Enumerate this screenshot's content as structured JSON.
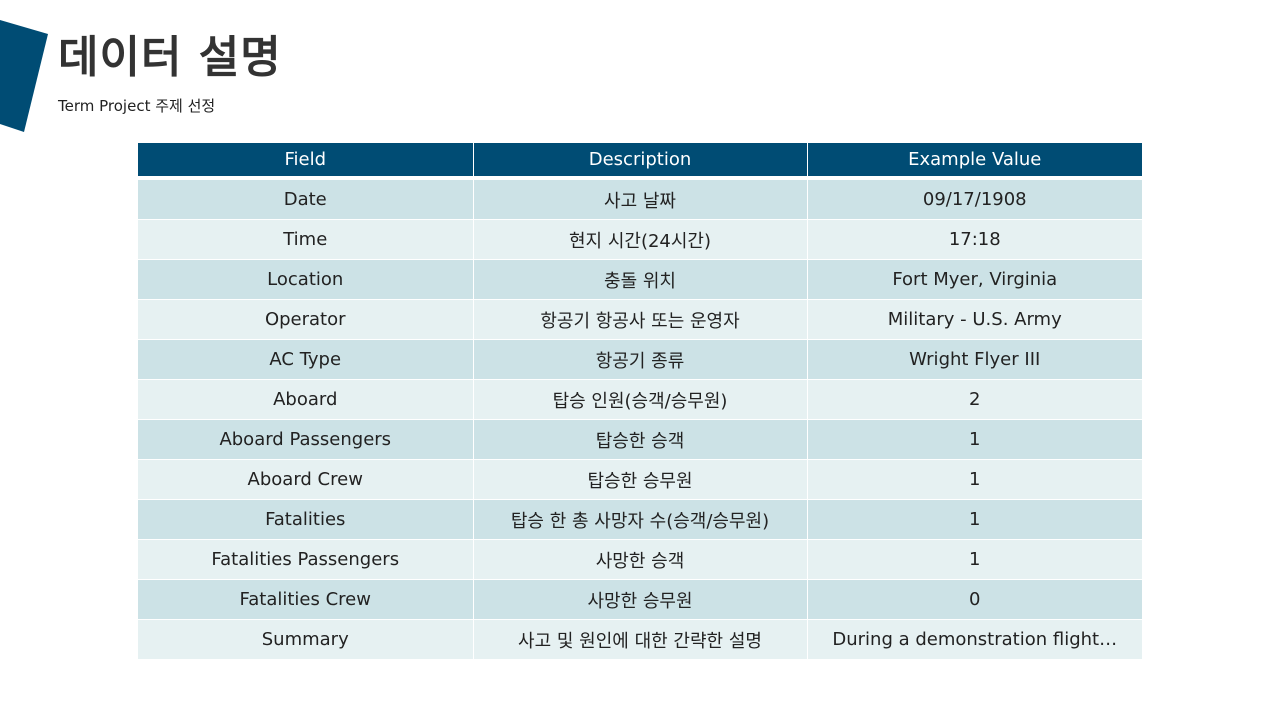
{
  "slide": {
    "title": "데이터 설명",
    "subtitle": "Term Project 주제 선정",
    "accent_color": "#004c74",
    "row_color_odd": "#cce2e6",
    "row_color_even": "#e6f1f2"
  },
  "table": {
    "headers": [
      "Field",
      "Description",
      "Example Value"
    ],
    "rows": [
      [
        "Date",
        "사고 날짜",
        "09/17/1908"
      ],
      [
        "Time",
        "현지 시간(24시간)",
        "17:18"
      ],
      [
        "Location",
        "충돌 위치",
        "Fort Myer, Virginia"
      ],
      [
        "Operator",
        "항공기 항공사 또는 운영자",
        "Military - U.S. Army"
      ],
      [
        "AC Type",
        "항공기 종류",
        "Wright Flyer III"
      ],
      [
        "Aboard",
        "탑승 인원(승객/승무원)",
        "2"
      ],
      [
        "Aboard Passengers",
        "탑승한 승객",
        "1"
      ],
      [
        "Aboard Crew",
        "탑승한 승무원",
        "1"
      ],
      [
        "Fatalities",
        "탑승 한 총 사망자 수(승객/승무원)",
        "1"
      ],
      [
        "Fatalities Passengers",
        "사망한 승객",
        "1"
      ],
      [
        "Fatalities Crew",
        "사망한 승무원",
        "0"
      ],
      [
        "Summary",
        "사고 및 원인에 대한 간략한 설명",
        "During a demonstration flight…"
      ]
    ]
  }
}
